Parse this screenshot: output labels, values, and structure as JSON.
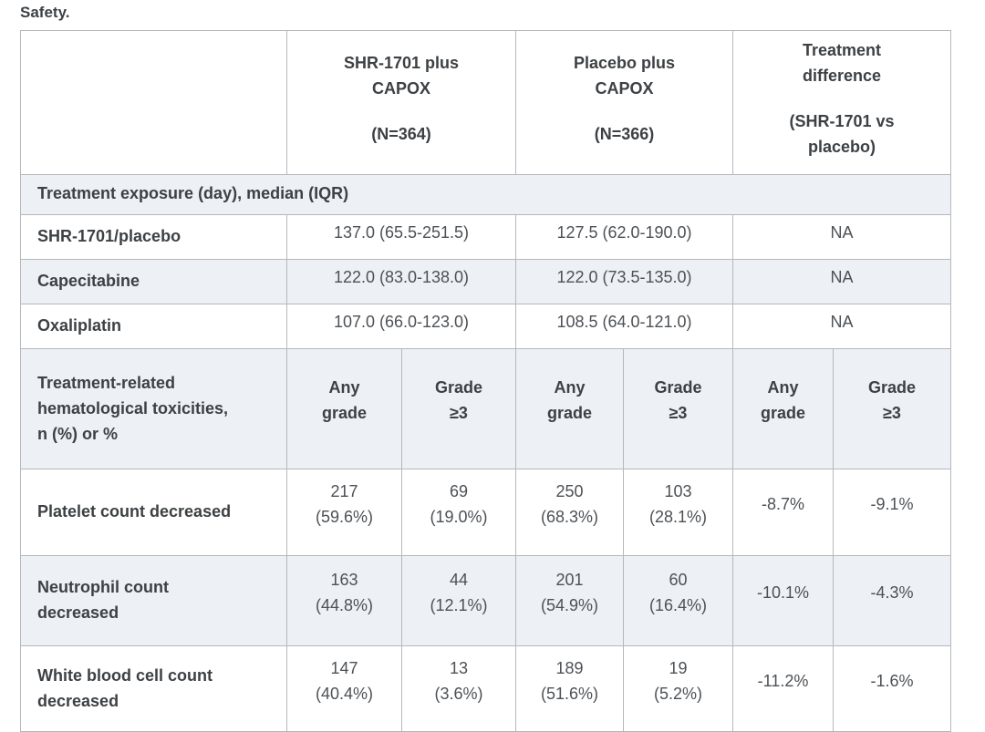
{
  "title": "Safety.",
  "table": {
    "header": {
      "blank": "",
      "groups": [
        {
          "title": "SHR-1701 plus CAPOX",
          "n": "(N=364)"
        },
        {
          "title": "Placebo plus CAPOX",
          "n": "(N=366)"
        },
        {
          "title": "Treatment difference",
          "n": "(SHR-1701 vs placebo)"
        }
      ]
    },
    "section_label": "Treatment exposure (day), median (IQR)",
    "exposure_rows": [
      {
        "label": "SHR-1701/placebo",
        "shr": "137.0 (65.5-251.5)",
        "placebo": "127.5 (62.0-190.0)",
        "difference": "NA"
      },
      {
        "label": "Capecitabine",
        "shr": "122.0 (83.0-138.0)",
        "placebo": "122.0 (73.5-135.0)",
        "difference": "NA"
      },
      {
        "label": "Oxaliplatin",
        "shr": "107.0 (66.0-123.0)",
        "placebo": "108.5 (64.0-121.0)",
        "difference": "NA"
      }
    ],
    "tox_section": {
      "label": "Treatment-related hematological toxicities, n (%) or %",
      "subheaders": [
        {
          "label": "Any grade"
        },
        {
          "label": "Grade ≥3"
        },
        {
          "label": "Any grade"
        },
        {
          "label": "Grade ≥3"
        },
        {
          "label": "Any grade"
        },
        {
          "label": "Grade ≥3"
        }
      ]
    },
    "tox_rows": [
      {
        "label": "Platelet count decreased",
        "shr_any_n": "217",
        "shr_any_pct": "(59.6%)",
        "shr_g3_n": "69",
        "shr_g3_pct": "(19.0%)",
        "placebo_any_n": "250",
        "placebo_any_pct": "(68.3%)",
        "placebo_g3_n": "103",
        "placebo_g3_pct": "(28.1%)",
        "diff_any": "-8.7%",
        "diff_g3": "-9.1%"
      },
      {
        "label": "Neutrophil count decreased",
        "shr_any_n": "163",
        "shr_any_pct": "(44.8%)",
        "shr_g3_n": "44",
        "shr_g3_pct": "(12.1%)",
        "placebo_any_n": "201",
        "placebo_any_pct": "(54.9%)",
        "placebo_g3_n": "60",
        "placebo_g3_pct": "(16.4%)",
        "diff_any": "-10.1%",
        "diff_g3": "-4.3%"
      },
      {
        "label": "White blood cell count decreased",
        "shr_any_n": "147",
        "shr_any_pct": "(40.4%)",
        "shr_g3_n": "13",
        "shr_g3_pct": "(3.6%)",
        "placebo_any_n": "189",
        "placebo_any_pct": "(51.6%)",
        "placebo_g3_n": "19",
        "placebo_g3_pct": "(5.2%)",
        "diff_any": "-11.2%",
        "diff_g3": "-1.6%"
      }
    ]
  },
  "colors": {
    "row_shade": "#edf0f4",
    "border": "#b5b8bb",
    "text_heading": "#3d4144",
    "text_value": "#4d5156"
  }
}
